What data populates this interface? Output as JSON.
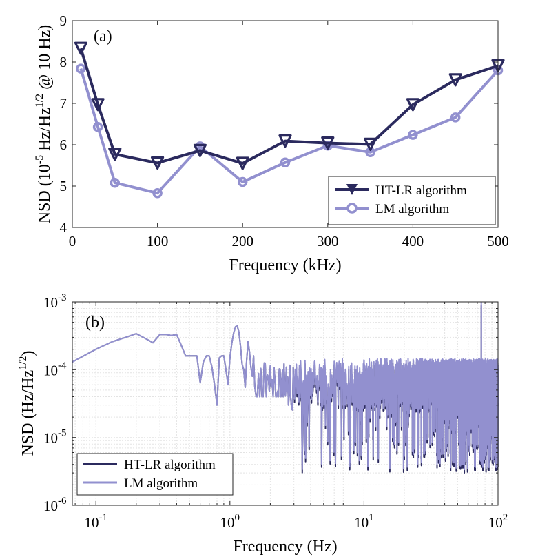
{
  "colors": {
    "ht_lr": "#2b2a5e",
    "lm": "#9290cf",
    "grid": "#e3e3e3"
  },
  "chart_data": [
    {
      "panel": "(a)",
      "type": "line",
      "xlabel": "Frequency (kHz)",
      "ylabel_main": "NSD (10",
      "ylabel_exp1": "-5",
      "ylabel_mid": " Hz/Hz",
      "ylabel_exp2": "1/2",
      "ylabel_tail": " @ 10 Hz)",
      "xlim": [
        0,
        500
      ],
      "ylim": [
        4,
        9
      ],
      "xticks": [
        0,
        100,
        200,
        300,
        400,
        500
      ],
      "yticks": [
        4,
        5,
        6,
        7,
        8,
        9
      ],
      "legend_position": "bottom-right",
      "x": [
        10,
        30,
        50,
        100,
        150,
        200,
        250,
        300,
        350,
        400,
        450,
        500
      ],
      "series": [
        {
          "name": "HT-LR algorithm",
          "marker": "triangle-down",
          "values": [
            8.33,
            6.97,
            5.77,
            5.56,
            5.86,
            5.55,
            6.09,
            6.04,
            6.01,
            6.97,
            7.57,
            7.91
          ]
        },
        {
          "name": "LM algorithm",
          "marker": "circle",
          "values": [
            7.84,
            6.43,
            5.08,
            4.83,
            5.96,
            5.1,
            5.57,
            5.98,
            5.82,
            6.24,
            6.66,
            7.8
          ]
        }
      ]
    },
    {
      "panel": "(b)",
      "type": "line",
      "scale": "log-log",
      "xlabel": "Frequency (Hz)",
      "ylabel_main": "NSD (Hz/Hz",
      "ylabel_exp": "1/2",
      "ylabel_tail": ")",
      "xlim": [
        0.0667,
        100
      ],
      "ylim": [
        1e-06,
        0.001
      ],
      "xticks": [
        {
          "base": "10",
          "exp": "-1",
          "value": 0.1
        },
        {
          "base": "10",
          "exp": "0",
          "value": 1
        },
        {
          "base": "10",
          "exp": "1",
          "value": 10
        },
        {
          "base": "10",
          "exp": "2",
          "value": 100
        }
      ],
      "yticks": [
        {
          "base": "10",
          "exp": "-6",
          "value": 1e-06
        },
        {
          "base": "10",
          "exp": "-5",
          "value": 1e-05
        },
        {
          "base": "10",
          "exp": "-4",
          "value": 0.0001
        },
        {
          "base": "10",
          "exp": "-3",
          "value": 0.001
        }
      ],
      "legend_position": "bottom-left",
      "legend": [
        "HT-LR algorithm",
        "LM algorithm"
      ],
      "x_low": [
        0.0667,
        0.1,
        0.1333,
        0.1667,
        0.2,
        0.2333,
        0.2667,
        0.3,
        0.3333,
        0.3667,
        0.4,
        0.4333,
        0.4667,
        0.5,
        0.5333,
        0.5667,
        0.6,
        0.6333,
        0.6667,
        0.7,
        0.7333,
        0.7667,
        0.8,
        0.8333,
        0.8667,
        0.9,
        0.9333,
        0.9667,
        1.0,
        1.0333,
        1.0667,
        1.1,
        1.1333,
        1.1667,
        1.2,
        1.2333,
        1.2667,
        1.3,
        1.3333,
        1.3667,
        1.4,
        1.4333,
        1.4667,
        1.5
      ],
      "values_low": [
        0.00013,
        0.0002,
        0.00026,
        0.0003,
        0.00034,
        0.00029,
        0.00025,
        0.00033,
        0.00033,
        0.00032,
        0.00033,
        0.00023,
        0.00016,
        0.00016,
        0.00016,
        0.00016,
        6.4e-05,
        0.00013,
        0.00016,
        0.00016,
        0.00011,
        6e-05,
        3e-05,
        0.00015,
        0.00016,
        0.00016,
        0.0001,
        6e-05,
        0.00015,
        0.00025,
        0.00035,
        0.00043,
        0.00044,
        0.00036,
        0.00022,
        0.00012,
        0.0001,
        5.5e-05,
        0.00014,
        0.00026,
        0.00018,
        0.00011,
        8e-05,
        0.00016
      ],
      "noise_start": 1.5,
      "noise_end": 100,
      "noise_center": 5.5e-05,
      "noise_ceiling": 0.00013,
      "noise_floor": 3e-06,
      "spike": {
        "x": 75.0,
        "value": 0.00088
      }
    }
  ],
  "panel_a_label": "(a)",
  "panel_b_label": "(b)"
}
